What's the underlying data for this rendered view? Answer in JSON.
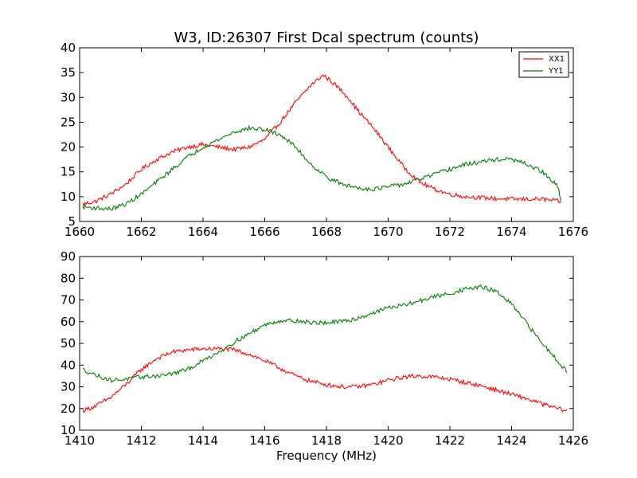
{
  "chart_data": [
    {
      "type": "line",
      "title": "W3, ID:26307 First Dcal spectrum (counts)",
      "xlabel": "",
      "ylabel": "",
      "xlim": [
        1660,
        1676
      ],
      "ylim": [
        5,
        40
      ],
      "xticks": [
        "1660",
        "1662",
        "1664",
        "1666",
        "1668",
        "1670",
        "1672",
        "1674",
        "1676"
      ],
      "yticks": [
        "5",
        "10",
        "15",
        "20",
        "25",
        "30",
        "35",
        "40"
      ],
      "legend": {
        "placement": "top-right",
        "entries": [
          "XX1",
          "YY1"
        ]
      },
      "series": [
        {
          "name": "XX1",
          "color": "#ff0000",
          "x": [
            1660.1,
            1660.5,
            1661.0,
            1661.5,
            1662.0,
            1662.5,
            1663.0,
            1663.5,
            1664.0,
            1664.5,
            1665.0,
            1665.5,
            1666.0,
            1666.5,
            1667.0,
            1667.5,
            1667.9,
            1668.3,
            1668.7,
            1669.0,
            1669.5,
            1670.0,
            1670.5,
            1671.0,
            1671.5,
            1672.0,
            1672.5,
            1673.0,
            1673.5,
            1674.0,
            1674.5,
            1675.0,
            1675.6
          ],
          "y": [
            8.5,
            9.0,
            10.5,
            12.5,
            15.5,
            17.5,
            19.0,
            20.0,
            20.5,
            20.0,
            19.5,
            20.0,
            21.5,
            25.0,
            29.0,
            32.5,
            34.5,
            32.5,
            30.0,
            27.5,
            24.0,
            20.0,
            16.0,
            13.0,
            11.5,
            10.5,
            10.0,
            9.8,
            9.6,
            9.5,
            9.5,
            9.5,
            9.0
          ]
        },
        {
          "name": "YY1",
          "color": "#008000",
          "x": [
            1660.1,
            1660.5,
            1661.0,
            1661.5,
            1662.0,
            1662.5,
            1663.0,
            1663.5,
            1664.0,
            1664.5,
            1665.0,
            1665.5,
            1666.0,
            1666.5,
            1667.0,
            1667.5,
            1668.0,
            1668.5,
            1669.0,
            1669.5,
            1670.0,
            1670.5,
            1671.0,
            1671.5,
            1672.0,
            1672.5,
            1673.0,
            1673.5,
            1674.0,
            1674.5,
            1675.0,
            1675.5,
            1675.6
          ],
          "y": [
            8.0,
            7.7,
            7.5,
            8.5,
            10.5,
            13.0,
            15.5,
            18.0,
            20.0,
            21.5,
            23.0,
            23.8,
            23.5,
            22.5,
            20.0,
            16.5,
            14.0,
            12.5,
            11.8,
            11.5,
            12.0,
            12.5,
            13.5,
            14.5,
            15.5,
            16.5,
            17.0,
            17.5,
            17.5,
            16.5,
            15.0,
            12.0,
            9.5
          ]
        }
      ]
    },
    {
      "type": "line",
      "title": "",
      "xlabel": "Frequency (MHz)",
      "ylabel": "",
      "xlim": [
        1410,
        1426
      ],
      "ylim": [
        10,
        90
      ],
      "xticks": [
        "1410",
        "1412",
        "1414",
        "1416",
        "1418",
        "1420",
        "1422",
        "1424",
        "1426"
      ],
      "yticks": [
        "10",
        "20",
        "30",
        "40",
        "50",
        "60",
        "70",
        "80",
        "90"
      ],
      "series": [
        {
          "color": "#ff0000",
          "x": [
            1410.1,
            1410.5,
            1411.0,
            1411.5,
            1412.0,
            1412.5,
            1413.0,
            1413.5,
            1414.0,
            1414.5,
            1415.0,
            1415.5,
            1416.0,
            1416.5,
            1417.0,
            1417.5,
            1418.0,
            1418.5,
            1419.0,
            1419.5,
            1420.0,
            1420.5,
            1421.0,
            1421.5,
            1422.0,
            1422.5,
            1423.0,
            1423.5,
            1424.0,
            1424.5,
            1425.0,
            1425.5,
            1425.8
          ],
          "y": [
            19.0,
            21.0,
            25.0,
            31.0,
            38.0,
            43.0,
            46.0,
            47.0,
            47.5,
            47.5,
            47.0,
            45.0,
            42.0,
            38.5,
            35.0,
            32.5,
            31.0,
            30.0,
            30.0,
            31.0,
            33.0,
            34.5,
            35.0,
            34.5,
            33.5,
            32.0,
            30.5,
            28.5,
            26.5,
            24.5,
            22.0,
            20.0,
            19.0
          ]
        },
        {
          "color": "#008000",
          "x": [
            1410.1,
            1410.5,
            1411.0,
            1411.5,
            1412.0,
            1412.5,
            1413.0,
            1413.5,
            1414.0,
            1414.5,
            1415.0,
            1415.5,
            1416.0,
            1416.5,
            1417.0,
            1417.5,
            1418.0,
            1418.5,
            1419.0,
            1419.5,
            1420.0,
            1420.5,
            1421.0,
            1421.5,
            1422.0,
            1422.5,
            1423.0,
            1423.5,
            1424.0,
            1424.5,
            1425.0,
            1425.5,
            1425.8
          ],
          "y": [
            38.0,
            35.5,
            33.0,
            33.5,
            34.5,
            35.0,
            36.0,
            38.0,
            42.0,
            46.0,
            50.5,
            54.5,
            58.5,
            60.5,
            60.5,
            59.5,
            59.5,
            60.0,
            61.5,
            64.0,
            66.5,
            67.5,
            69.5,
            71.5,
            73.0,
            75.0,
            76.0,
            74.0,
            68.0,
            59.0,
            50.0,
            42.0,
            37.0
          ]
        }
      ]
    }
  ]
}
